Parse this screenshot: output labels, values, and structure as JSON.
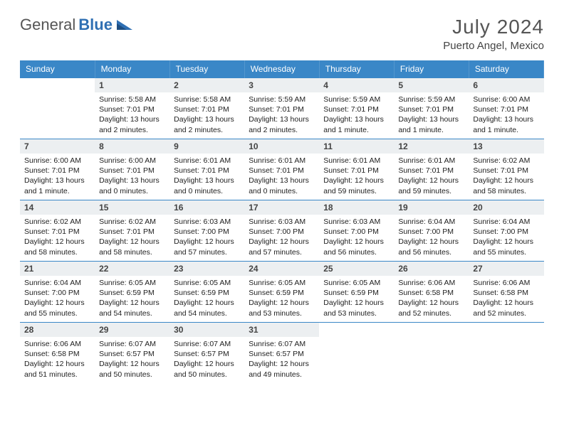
{
  "brand": {
    "part1": "General",
    "part2": "Blue"
  },
  "title": "July 2024",
  "location": "Puerto Angel, Mexico",
  "colors": {
    "header_bg": "#3a87c7",
    "header_text": "#ffffff",
    "daynum_bg": "#eceff1",
    "row_border": "#3a87c7",
    "brand_blue": "#2f6fb3"
  },
  "weekdays": [
    "Sunday",
    "Monday",
    "Tuesday",
    "Wednesday",
    "Thursday",
    "Friday",
    "Saturday"
  ],
  "weeks": [
    [
      {
        "num": "",
        "sunrise": "",
        "sunset": "",
        "daylight1": "",
        "daylight2": "",
        "empty": true
      },
      {
        "num": "1",
        "sunrise": "Sunrise: 5:58 AM",
        "sunset": "Sunset: 7:01 PM",
        "daylight1": "Daylight: 13 hours",
        "daylight2": "and 2 minutes."
      },
      {
        "num": "2",
        "sunrise": "Sunrise: 5:58 AM",
        "sunset": "Sunset: 7:01 PM",
        "daylight1": "Daylight: 13 hours",
        "daylight2": "and 2 minutes."
      },
      {
        "num": "3",
        "sunrise": "Sunrise: 5:59 AM",
        "sunset": "Sunset: 7:01 PM",
        "daylight1": "Daylight: 13 hours",
        "daylight2": "and 2 minutes."
      },
      {
        "num": "4",
        "sunrise": "Sunrise: 5:59 AM",
        "sunset": "Sunset: 7:01 PM",
        "daylight1": "Daylight: 13 hours",
        "daylight2": "and 1 minute."
      },
      {
        "num": "5",
        "sunrise": "Sunrise: 5:59 AM",
        "sunset": "Sunset: 7:01 PM",
        "daylight1": "Daylight: 13 hours",
        "daylight2": "and 1 minute."
      },
      {
        "num": "6",
        "sunrise": "Sunrise: 6:00 AM",
        "sunset": "Sunset: 7:01 PM",
        "daylight1": "Daylight: 13 hours",
        "daylight2": "and 1 minute."
      }
    ],
    [
      {
        "num": "7",
        "sunrise": "Sunrise: 6:00 AM",
        "sunset": "Sunset: 7:01 PM",
        "daylight1": "Daylight: 13 hours",
        "daylight2": "and 1 minute."
      },
      {
        "num": "8",
        "sunrise": "Sunrise: 6:00 AM",
        "sunset": "Sunset: 7:01 PM",
        "daylight1": "Daylight: 13 hours",
        "daylight2": "and 0 minutes."
      },
      {
        "num": "9",
        "sunrise": "Sunrise: 6:01 AM",
        "sunset": "Sunset: 7:01 PM",
        "daylight1": "Daylight: 13 hours",
        "daylight2": "and 0 minutes."
      },
      {
        "num": "10",
        "sunrise": "Sunrise: 6:01 AM",
        "sunset": "Sunset: 7:01 PM",
        "daylight1": "Daylight: 13 hours",
        "daylight2": "and 0 minutes."
      },
      {
        "num": "11",
        "sunrise": "Sunrise: 6:01 AM",
        "sunset": "Sunset: 7:01 PM",
        "daylight1": "Daylight: 12 hours",
        "daylight2": "and 59 minutes."
      },
      {
        "num": "12",
        "sunrise": "Sunrise: 6:01 AM",
        "sunset": "Sunset: 7:01 PM",
        "daylight1": "Daylight: 12 hours",
        "daylight2": "and 59 minutes."
      },
      {
        "num": "13",
        "sunrise": "Sunrise: 6:02 AM",
        "sunset": "Sunset: 7:01 PM",
        "daylight1": "Daylight: 12 hours",
        "daylight2": "and 58 minutes."
      }
    ],
    [
      {
        "num": "14",
        "sunrise": "Sunrise: 6:02 AM",
        "sunset": "Sunset: 7:01 PM",
        "daylight1": "Daylight: 12 hours",
        "daylight2": "and 58 minutes."
      },
      {
        "num": "15",
        "sunrise": "Sunrise: 6:02 AM",
        "sunset": "Sunset: 7:01 PM",
        "daylight1": "Daylight: 12 hours",
        "daylight2": "and 58 minutes."
      },
      {
        "num": "16",
        "sunrise": "Sunrise: 6:03 AM",
        "sunset": "Sunset: 7:00 PM",
        "daylight1": "Daylight: 12 hours",
        "daylight2": "and 57 minutes."
      },
      {
        "num": "17",
        "sunrise": "Sunrise: 6:03 AM",
        "sunset": "Sunset: 7:00 PM",
        "daylight1": "Daylight: 12 hours",
        "daylight2": "and 57 minutes."
      },
      {
        "num": "18",
        "sunrise": "Sunrise: 6:03 AM",
        "sunset": "Sunset: 7:00 PM",
        "daylight1": "Daylight: 12 hours",
        "daylight2": "and 56 minutes."
      },
      {
        "num": "19",
        "sunrise": "Sunrise: 6:04 AM",
        "sunset": "Sunset: 7:00 PM",
        "daylight1": "Daylight: 12 hours",
        "daylight2": "and 56 minutes."
      },
      {
        "num": "20",
        "sunrise": "Sunrise: 6:04 AM",
        "sunset": "Sunset: 7:00 PM",
        "daylight1": "Daylight: 12 hours",
        "daylight2": "and 55 minutes."
      }
    ],
    [
      {
        "num": "21",
        "sunrise": "Sunrise: 6:04 AM",
        "sunset": "Sunset: 7:00 PM",
        "daylight1": "Daylight: 12 hours",
        "daylight2": "and 55 minutes."
      },
      {
        "num": "22",
        "sunrise": "Sunrise: 6:05 AM",
        "sunset": "Sunset: 6:59 PM",
        "daylight1": "Daylight: 12 hours",
        "daylight2": "and 54 minutes."
      },
      {
        "num": "23",
        "sunrise": "Sunrise: 6:05 AM",
        "sunset": "Sunset: 6:59 PM",
        "daylight1": "Daylight: 12 hours",
        "daylight2": "and 54 minutes."
      },
      {
        "num": "24",
        "sunrise": "Sunrise: 6:05 AM",
        "sunset": "Sunset: 6:59 PM",
        "daylight1": "Daylight: 12 hours",
        "daylight2": "and 53 minutes."
      },
      {
        "num": "25",
        "sunrise": "Sunrise: 6:05 AM",
        "sunset": "Sunset: 6:59 PM",
        "daylight1": "Daylight: 12 hours",
        "daylight2": "and 53 minutes."
      },
      {
        "num": "26",
        "sunrise": "Sunrise: 6:06 AM",
        "sunset": "Sunset: 6:58 PM",
        "daylight1": "Daylight: 12 hours",
        "daylight2": "and 52 minutes."
      },
      {
        "num": "27",
        "sunrise": "Sunrise: 6:06 AM",
        "sunset": "Sunset: 6:58 PM",
        "daylight1": "Daylight: 12 hours",
        "daylight2": "and 52 minutes."
      }
    ],
    [
      {
        "num": "28",
        "sunrise": "Sunrise: 6:06 AM",
        "sunset": "Sunset: 6:58 PM",
        "daylight1": "Daylight: 12 hours",
        "daylight2": "and 51 minutes."
      },
      {
        "num": "29",
        "sunrise": "Sunrise: 6:07 AM",
        "sunset": "Sunset: 6:57 PM",
        "daylight1": "Daylight: 12 hours",
        "daylight2": "and 50 minutes."
      },
      {
        "num": "30",
        "sunrise": "Sunrise: 6:07 AM",
        "sunset": "Sunset: 6:57 PM",
        "daylight1": "Daylight: 12 hours",
        "daylight2": "and 50 minutes."
      },
      {
        "num": "31",
        "sunrise": "Sunrise: 6:07 AM",
        "sunset": "Sunset: 6:57 PM",
        "daylight1": "Daylight: 12 hours",
        "daylight2": "and 49 minutes."
      },
      {
        "num": "",
        "sunrise": "",
        "sunset": "",
        "daylight1": "",
        "daylight2": "",
        "empty": true
      },
      {
        "num": "",
        "sunrise": "",
        "sunset": "",
        "daylight1": "",
        "daylight2": "",
        "empty": true
      },
      {
        "num": "",
        "sunrise": "",
        "sunset": "",
        "daylight1": "",
        "daylight2": "",
        "empty": true
      }
    ]
  ]
}
